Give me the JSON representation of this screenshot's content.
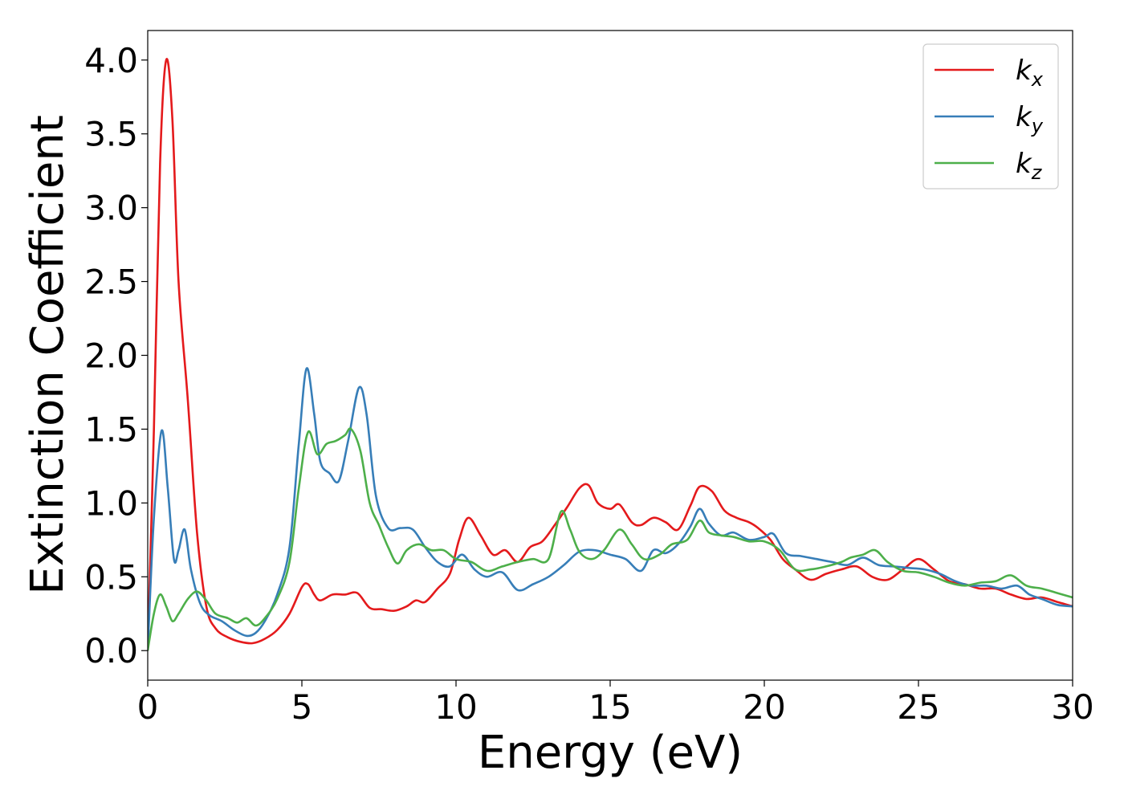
{
  "chart_data": {
    "type": "line",
    "title": "",
    "xlabel": "Energy (eV)",
    "ylabel": "Extinction Coefficient",
    "xlim": [
      0,
      30
    ],
    "ylim": [
      -0.2,
      4.2
    ],
    "xticks": [
      0,
      5,
      10,
      15,
      20,
      25,
      30
    ],
    "xtick_labels": [
      "0",
      "5",
      "10",
      "15",
      "20",
      "25",
      "30"
    ],
    "yticks": [
      0.0,
      0.5,
      1.0,
      1.5,
      2.0,
      2.5,
      3.0,
      3.5,
      4.0
    ],
    "ytick_labels": [
      "0.0",
      "0.5",
      "1.0",
      "1.5",
      "2.0",
      "2.5",
      "3.0",
      "3.5",
      "4.0"
    ],
    "grid": false,
    "legend_position": "top-right",
    "series": [
      {
        "name": "k",
        "subscript": "x",
        "color": "#e41a1c",
        "points": [
          [
            0,
            0
          ],
          [
            0.2,
            1.5
          ],
          [
            0.4,
            3.3
          ],
          [
            0.6,
            4.0
          ],
          [
            0.8,
            3.6
          ],
          [
            1.0,
            2.5
          ],
          [
            1.3,
            1.7
          ],
          [
            1.6,
            0.8
          ],
          [
            1.9,
            0.3
          ],
          [
            2.2,
            0.15
          ],
          [
            2.6,
            0.09
          ],
          [
            3.0,
            0.06
          ],
          [
            3.4,
            0.05
          ],
          [
            3.8,
            0.08
          ],
          [
            4.2,
            0.14
          ],
          [
            4.6,
            0.25
          ],
          [
            5.0,
            0.43
          ],
          [
            5.2,
            0.45
          ],
          [
            5.4,
            0.38
          ],
          [
            5.6,
            0.34
          ],
          [
            6.0,
            0.38
          ],
          [
            6.4,
            0.38
          ],
          [
            6.8,
            0.39
          ],
          [
            7.2,
            0.29
          ],
          [
            7.6,
            0.28
          ],
          [
            8.0,
            0.27
          ],
          [
            8.4,
            0.3
          ],
          [
            8.7,
            0.34
          ],
          [
            9.0,
            0.33
          ],
          [
            9.4,
            0.42
          ],
          [
            9.8,
            0.52
          ],
          [
            10.1,
            0.75
          ],
          [
            10.4,
            0.9
          ],
          [
            10.8,
            0.78
          ],
          [
            11.2,
            0.65
          ],
          [
            11.6,
            0.68
          ],
          [
            12.0,
            0.6
          ],
          [
            12.4,
            0.7
          ],
          [
            12.8,
            0.74
          ],
          [
            13.2,
            0.85
          ],
          [
            13.6,
            0.97
          ],
          [
            14.0,
            1.1
          ],
          [
            14.3,
            1.12
          ],
          [
            14.6,
            1.0
          ],
          [
            15.0,
            0.96
          ],
          [
            15.3,
            0.99
          ],
          [
            15.7,
            0.87
          ],
          [
            16.0,
            0.85
          ],
          [
            16.4,
            0.9
          ],
          [
            16.8,
            0.87
          ],
          [
            17.2,
            0.82
          ],
          [
            17.6,
            0.98
          ],
          [
            17.9,
            1.11
          ],
          [
            18.3,
            1.08
          ],
          [
            18.7,
            0.95
          ],
          [
            19.1,
            0.9
          ],
          [
            19.5,
            0.87
          ],
          [
            19.8,
            0.83
          ],
          [
            20.2,
            0.75
          ],
          [
            20.6,
            0.62
          ],
          [
            21.0,
            0.55
          ],
          [
            21.5,
            0.48
          ],
          [
            22.0,
            0.52
          ],
          [
            22.5,
            0.55
          ],
          [
            23.0,
            0.57
          ],
          [
            23.5,
            0.5
          ],
          [
            24.0,
            0.48
          ],
          [
            24.5,
            0.55
          ],
          [
            25.0,
            0.62
          ],
          [
            25.5,
            0.55
          ],
          [
            26.0,
            0.47
          ],
          [
            26.5,
            0.45
          ],
          [
            27.0,
            0.42
          ],
          [
            27.5,
            0.42
          ],
          [
            28.0,
            0.38
          ],
          [
            28.5,
            0.35
          ],
          [
            29.0,
            0.36
          ],
          [
            29.5,
            0.33
          ],
          [
            30.0,
            0.3
          ]
        ]
      },
      {
        "name": "k",
        "subscript": "y",
        "color": "#377eb8",
        "points": [
          [
            0,
            0
          ],
          [
            0.2,
            0.9
          ],
          [
            0.45,
            1.49
          ],
          [
            0.65,
            1.1
          ],
          [
            0.85,
            0.62
          ],
          [
            1.0,
            0.68
          ],
          [
            1.2,
            0.82
          ],
          [
            1.4,
            0.55
          ],
          [
            1.7,
            0.32
          ],
          [
            2.0,
            0.24
          ],
          [
            2.4,
            0.2
          ],
          [
            2.8,
            0.14
          ],
          [
            3.2,
            0.1
          ],
          [
            3.5,
            0.12
          ],
          [
            3.8,
            0.2
          ],
          [
            4.2,
            0.38
          ],
          [
            4.6,
            0.7
          ],
          [
            4.9,
            1.4
          ],
          [
            5.15,
            1.91
          ],
          [
            5.4,
            1.6
          ],
          [
            5.6,
            1.28
          ],
          [
            5.9,
            1.2
          ],
          [
            6.2,
            1.15
          ],
          [
            6.5,
            1.42
          ],
          [
            6.85,
            1.78
          ],
          [
            7.1,
            1.6
          ],
          [
            7.4,
            1.05
          ],
          [
            7.8,
            0.83
          ],
          [
            8.2,
            0.83
          ],
          [
            8.6,
            0.82
          ],
          [
            9.0,
            0.7
          ],
          [
            9.4,
            0.6
          ],
          [
            9.8,
            0.57
          ],
          [
            10.2,
            0.65
          ],
          [
            10.6,
            0.55
          ],
          [
            11.0,
            0.5
          ],
          [
            11.5,
            0.53
          ],
          [
            12.0,
            0.41
          ],
          [
            12.5,
            0.45
          ],
          [
            13.0,
            0.5
          ],
          [
            13.5,
            0.58
          ],
          [
            14.0,
            0.67
          ],
          [
            14.5,
            0.68
          ],
          [
            15.0,
            0.65
          ],
          [
            15.5,
            0.62
          ],
          [
            16.0,
            0.54
          ],
          [
            16.4,
            0.68
          ],
          [
            16.8,
            0.66
          ],
          [
            17.2,
            0.72
          ],
          [
            17.6,
            0.84
          ],
          [
            17.9,
            0.96
          ],
          [
            18.2,
            0.86
          ],
          [
            18.6,
            0.78
          ],
          [
            19.0,
            0.8
          ],
          [
            19.5,
            0.75
          ],
          [
            20.0,
            0.77
          ],
          [
            20.3,
            0.79
          ],
          [
            20.7,
            0.66
          ],
          [
            21.2,
            0.64
          ],
          [
            21.7,
            0.62
          ],
          [
            22.2,
            0.6
          ],
          [
            22.7,
            0.58
          ],
          [
            23.2,
            0.63
          ],
          [
            23.7,
            0.58
          ],
          [
            24.2,
            0.57
          ],
          [
            24.7,
            0.56
          ],
          [
            25.2,
            0.55
          ],
          [
            25.7,
            0.52
          ],
          [
            26.2,
            0.47
          ],
          [
            26.7,
            0.44
          ],
          [
            27.2,
            0.44
          ],
          [
            27.7,
            0.42
          ],
          [
            28.2,
            0.44
          ],
          [
            28.6,
            0.38
          ],
          [
            29.0,
            0.35
          ],
          [
            29.5,
            0.31
          ],
          [
            30.0,
            0.3
          ]
        ]
      },
      {
        "name": "k",
        "subscript": "z",
        "color": "#4daf4a",
        "points": [
          [
            0,
            0
          ],
          [
            0.2,
            0.25
          ],
          [
            0.4,
            0.38
          ],
          [
            0.6,
            0.3
          ],
          [
            0.8,
            0.2
          ],
          [
            1.0,
            0.25
          ],
          [
            1.3,
            0.35
          ],
          [
            1.6,
            0.4
          ],
          [
            1.9,
            0.34
          ],
          [
            2.2,
            0.25
          ],
          [
            2.6,
            0.22
          ],
          [
            2.9,
            0.19
          ],
          [
            3.2,
            0.22
          ],
          [
            3.5,
            0.17
          ],
          [
            3.8,
            0.22
          ],
          [
            4.2,
            0.35
          ],
          [
            4.6,
            0.6
          ],
          [
            4.9,
            1.1
          ],
          [
            5.2,
            1.48
          ],
          [
            5.5,
            1.33
          ],
          [
            5.8,
            1.4
          ],
          [
            6.1,
            1.42
          ],
          [
            6.4,
            1.46
          ],
          [
            6.6,
            1.5
          ],
          [
            6.9,
            1.35
          ],
          [
            7.2,
            1.0
          ],
          [
            7.5,
            0.85
          ],
          [
            7.8,
            0.7
          ],
          [
            8.1,
            0.59
          ],
          [
            8.4,
            0.68
          ],
          [
            8.8,
            0.72
          ],
          [
            9.2,
            0.68
          ],
          [
            9.6,
            0.68
          ],
          [
            10.0,
            0.62
          ],
          [
            10.5,
            0.6
          ],
          [
            11.0,
            0.54
          ],
          [
            11.5,
            0.57
          ],
          [
            12.0,
            0.6
          ],
          [
            12.5,
            0.62
          ],
          [
            13.0,
            0.62
          ],
          [
            13.4,
            0.94
          ],
          [
            13.7,
            0.82
          ],
          [
            14.0,
            0.67
          ],
          [
            14.4,
            0.62
          ],
          [
            14.8,
            0.68
          ],
          [
            15.3,
            0.82
          ],
          [
            15.7,
            0.72
          ],
          [
            16.1,
            0.62
          ],
          [
            16.6,
            0.65
          ],
          [
            17.0,
            0.72
          ],
          [
            17.5,
            0.75
          ],
          [
            17.9,
            0.88
          ],
          [
            18.2,
            0.8
          ],
          [
            18.6,
            0.78
          ],
          [
            19.0,
            0.77
          ],
          [
            19.5,
            0.74
          ],
          [
            20.0,
            0.74
          ],
          [
            20.5,
            0.68
          ],
          [
            21.0,
            0.55
          ],
          [
            21.5,
            0.55
          ],
          [
            22.0,
            0.57
          ],
          [
            22.5,
            0.6
          ],
          [
            22.8,
            0.63
          ],
          [
            23.2,
            0.65
          ],
          [
            23.6,
            0.68
          ],
          [
            24.0,
            0.6
          ],
          [
            24.5,
            0.54
          ],
          [
            25.0,
            0.53
          ],
          [
            25.5,
            0.5
          ],
          [
            26.0,
            0.46
          ],
          [
            26.5,
            0.44
          ],
          [
            27.0,
            0.46
          ],
          [
            27.5,
            0.47
          ],
          [
            28.0,
            0.51
          ],
          [
            28.5,
            0.44
          ],
          [
            29.0,
            0.42
          ],
          [
            29.5,
            0.39
          ],
          [
            30.0,
            0.36
          ]
        ]
      }
    ]
  }
}
